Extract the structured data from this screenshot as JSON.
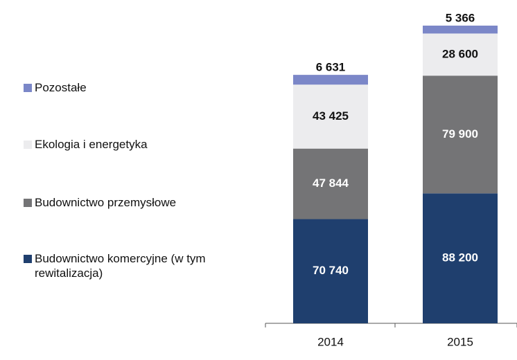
{
  "chart_data": {
    "type": "stacked_bar",
    "categories": [
      "2014",
      "2015"
    ],
    "series": [
      {
        "name": "Budownictwo komercyjne (w tym rewitalizacja)",
        "color": "#1f3f6e",
        "values": [
          70740,
          88200
        ],
        "value_labels": [
          "70 740",
          "88 200"
        ]
      },
      {
        "name": "Budownictwo przemysłowe",
        "color": "#747476",
        "values": [
          47844,
          79900
        ],
        "value_labels": [
          "47 844",
          "79 900"
        ]
      },
      {
        "name": "Ekologia i energetyka",
        "color": "#ececee",
        "values": [
          43425,
          28600
        ],
        "value_labels": [
          "43 425",
          "28 600"
        ]
      },
      {
        "name": "Pozostałe",
        "color": "#7b87c8",
        "values": [
          6631,
          5366
        ],
        "value_labels": [
          "6 631",
          "5 366"
        ]
      }
    ],
    "legend": "left"
  }
}
